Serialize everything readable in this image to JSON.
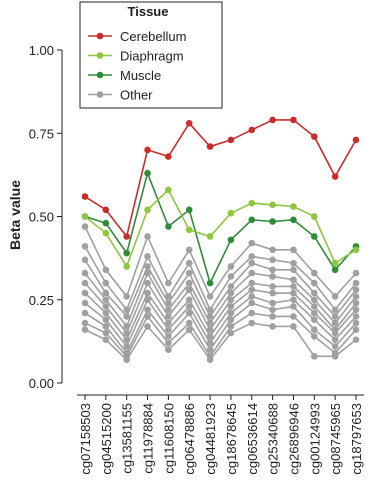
{
  "chart_data": {
    "type": "line",
    "y_label": "Beta value",
    "legend_title": "Tissue",
    "categories": [
      "cg07158503",
      "cg04515200",
      "cg13581155",
      "cg11978884",
      "cg11608150",
      "cg06478886",
      "cg04481923",
      "cg18678645",
      "cg06536614",
      "cg25340688",
      "cg26896946",
      "cg00124993",
      "cg08745965",
      "cg18797653"
    ],
    "series": [
      {
        "name": "Cerebellum",
        "color": "#cc2b2b",
        "values": [
          0.56,
          0.52,
          0.44,
          0.7,
          0.68,
          0.78,
          0.71,
          0.73,
          0.76,
          0.79,
          0.79,
          0.74,
          0.62,
          0.73
        ]
      },
      {
        "name": "Diaphragm",
        "color": "#8dc63f",
        "values": [
          0.5,
          0.45,
          0.35,
          0.52,
          0.58,
          0.46,
          0.44,
          0.51,
          0.54,
          0.535,
          0.53,
          0.5,
          0.36,
          0.4
        ]
      },
      {
        "name": "Muscle",
        "color": "#2e8b3a",
        "values": [
          0.5,
          0.48,
          0.39,
          0.63,
          0.47,
          0.52,
          0.3,
          0.43,
          0.49,
          0.485,
          0.49,
          0.44,
          0.34,
          0.41
        ]
      },
      {
        "name": "Other",
        "color": "#a0a0a0",
        "values": [
          [
            0.47,
            0.34,
            0.26,
            0.44,
            0.3,
            0.4,
            0.26,
            0.35,
            0.42,
            0.4,
            0.4,
            0.33,
            0.26,
            0.33
          ],
          [
            0.41,
            0.3,
            0.22,
            0.38,
            0.26,
            0.36,
            0.22,
            0.32,
            0.38,
            0.37,
            0.36,
            0.3,
            0.22,
            0.3
          ],
          [
            0.37,
            0.27,
            0.2,
            0.35,
            0.24,
            0.33,
            0.2,
            0.29,
            0.36,
            0.34,
            0.34,
            0.27,
            0.2,
            0.28
          ],
          [
            0.33,
            0.25,
            0.17,
            0.33,
            0.22,
            0.3,
            0.18,
            0.27,
            0.33,
            0.32,
            0.31,
            0.25,
            0.18,
            0.26
          ],
          [
            0.3,
            0.23,
            0.15,
            0.3,
            0.2,
            0.28,
            0.16,
            0.25,
            0.3,
            0.29,
            0.29,
            0.23,
            0.16,
            0.24
          ],
          [
            0.27,
            0.21,
            0.13,
            0.27,
            0.18,
            0.25,
            0.14,
            0.23,
            0.28,
            0.27,
            0.27,
            0.21,
            0.15,
            0.22
          ],
          [
            0.24,
            0.19,
            0.11,
            0.25,
            0.16,
            0.23,
            0.12,
            0.21,
            0.26,
            0.24,
            0.25,
            0.19,
            0.13,
            0.2
          ],
          [
            0.21,
            0.17,
            0.09,
            0.22,
            0.14,
            0.21,
            0.1,
            0.19,
            0.24,
            0.22,
            0.23,
            0.16,
            0.11,
            0.18
          ],
          [
            0.18,
            0.15,
            0.08,
            0.2,
            0.12,
            0.18,
            0.08,
            0.17,
            0.21,
            0.2,
            0.2,
            0.14,
            0.09,
            0.16
          ],
          [
            0.16,
            0.13,
            0.07,
            0.17,
            0.1,
            0.16,
            0.07,
            0.15,
            0.18,
            0.17,
            0.17,
            0.08,
            0.08,
            0.13
          ]
        ]
      }
    ],
    "ylim": [
      0,
      1
    ],
    "yticks": [
      {
        "value": 0,
        "label": "0.00"
      },
      {
        "value": 0.25,
        "label": "0.25"
      },
      {
        "value": 0.5,
        "label": "0.50"
      },
      {
        "value": 0.75,
        "label": "0.75"
      },
      {
        "value": 1,
        "label": "1.00"
      }
    ],
    "legend_position": "top-left"
  }
}
